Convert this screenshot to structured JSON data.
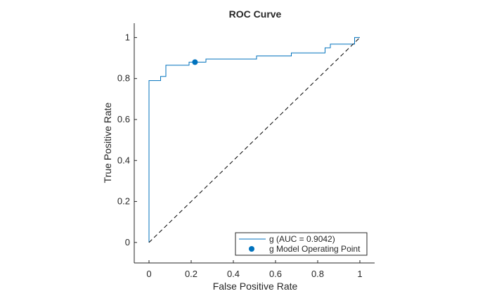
{
  "chart_data": {
    "type": "line",
    "title": "ROC Curve",
    "xlabel": "False Positive Rate",
    "ylabel": "True Positive Rate",
    "xlim": [
      -0.07,
      1.07
    ],
    "ylim": [
      -0.1,
      1.07
    ],
    "x_ticks": [
      0,
      0.2,
      0.4,
      0.6,
      0.8,
      1
    ],
    "y_ticks": [
      0,
      0.2,
      0.4,
      0.6,
      0.8,
      1
    ],
    "x_tick_labels": [
      "0",
      "0.2",
      "0.4",
      "0.6",
      "0.8",
      "1"
    ],
    "y_tick_labels": [
      "0",
      "0.2",
      "0.4",
      "0.6",
      "0.8",
      "1"
    ],
    "grid": false,
    "legend_position": "bottom-right",
    "series": [
      {
        "name": "g (AUC = 0.9042)",
        "color": "#0072BD",
        "style": "step",
        "points": [
          [
            0,
            0
          ],
          [
            0,
            0.79
          ],
          [
            0.055,
            0.79
          ],
          [
            0.055,
            0.81
          ],
          [
            0.08,
            0.81
          ],
          [
            0.08,
            0.865
          ],
          [
            0.19,
            0.865
          ],
          [
            0.19,
            0.88
          ],
          [
            0.27,
            0.88
          ],
          [
            0.27,
            0.895
          ],
          [
            0.51,
            0.895
          ],
          [
            0.51,
            0.91
          ],
          [
            0.675,
            0.91
          ],
          [
            0.675,
            0.925
          ],
          [
            0.835,
            0.925
          ],
          [
            0.835,
            0.95
          ],
          [
            0.86,
            0.95
          ],
          [
            0.86,
            0.968
          ],
          [
            0.975,
            0.968
          ],
          [
            0.975,
            1.0
          ],
          [
            1.0,
            1.0
          ]
        ]
      },
      {
        "name": "g Model Operating Point",
        "color": "#0072BD",
        "style": "marker",
        "points": [
          [
            0.218,
            0.88
          ]
        ]
      },
      {
        "name": "",
        "color": "#000000",
        "style": "dashed",
        "points": [
          [
            0,
            0
          ],
          [
            1,
            1
          ]
        ]
      }
    ]
  }
}
